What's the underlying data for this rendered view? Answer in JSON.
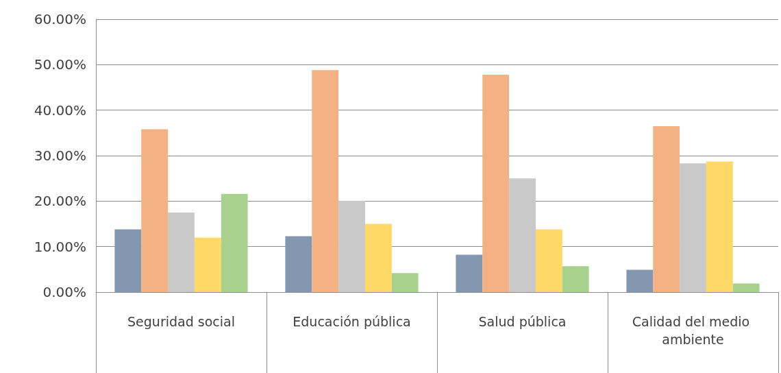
{
  "chart_data": {
    "type": "bar",
    "categories": [
      "Seguridad social",
      "Educación pública",
      "Salud pública",
      "Calidad del medio ambiente"
    ],
    "series": [
      {
        "color": "#8497b0",
        "values": [
          13.8,
          12.3,
          8.2,
          4.9
        ]
      },
      {
        "color": "#f4b183",
        "values": [
          35.8,
          48.8,
          47.8,
          36.5
        ]
      },
      {
        "color": "#c9c9c9",
        "values": [
          17.5,
          20.1,
          25.0,
          28.3
        ]
      },
      {
        "color": "#ffd966",
        "values": [
          12.0,
          15.0,
          13.8,
          28.7
        ]
      },
      {
        "color": "#a9d18e",
        "values": [
          21.6,
          4.2,
          5.7,
          1.9
        ]
      }
    ],
    "ylim": [
      0,
      60
    ],
    "yticks": [
      {
        "value": 0,
        "label": "0.00%"
      },
      {
        "value": 10,
        "label": "10.00%"
      },
      {
        "value": 20,
        "label": "20.00%"
      },
      {
        "value": 30,
        "label": "30.00%"
      },
      {
        "value": 40,
        "label": "40.00%"
      },
      {
        "value": 50,
        "label": "50.00%"
      },
      {
        "value": 60,
        "label": "60.00%"
      }
    ],
    "grid": "y"
  }
}
